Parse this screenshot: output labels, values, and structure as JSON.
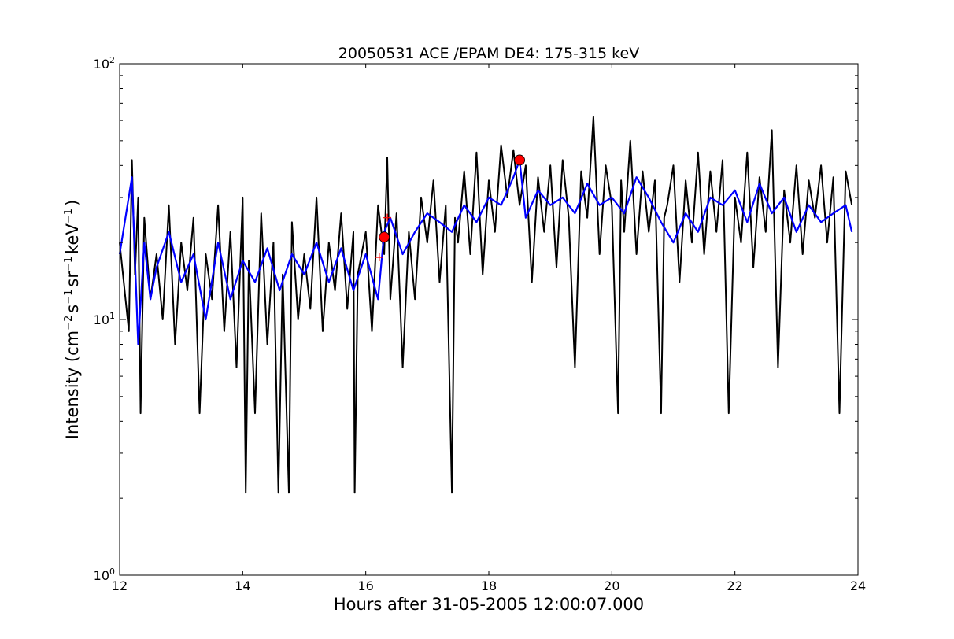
{
  "chart_data": {
    "type": "line",
    "title": "20050531 ACE /EPAM DE4: 175-315 keV",
    "xlabel": "Hours after 31-05-2005 12:00:07.000",
    "ylabel": {
      "base": "Intensity (cm",
      "exp1": "−2",
      "mid1": "s",
      "exp2": "−1",
      "mid2": "sr",
      "exp3": "−1",
      "mid3": "keV",
      "exp4": "−1",
      "end": ")"
    },
    "xlim": [
      12,
      24
    ],
    "ylim": [
      1,
      100
    ],
    "yscale": "log",
    "grid": false,
    "x_ticks": [
      12,
      14,
      16,
      18,
      20,
      22,
      24
    ],
    "x_tick_labels": [
      "12",
      "14",
      "16",
      "18",
      "20",
      "22",
      "24"
    ],
    "y_ticks": [
      1,
      10,
      100
    ],
    "y_tick_labels": [
      {
        "base": "10",
        "exp": "0"
      },
      {
        "base": "10",
        "exp": "1"
      },
      {
        "base": "10",
        "exp": "2"
      }
    ],
    "series": [
      {
        "color": "#000000",
        "style": "raw",
        "x": [
          12.0,
          12.15,
          12.2,
          12.25,
          12.3,
          12.34,
          12.4,
          12.5,
          12.6,
          12.7,
          12.8,
          12.9,
          13.0,
          13.1,
          13.2,
          13.3,
          13.4,
          13.5,
          13.6,
          13.7,
          13.8,
          13.9,
          14.0,
          14.05,
          14.1,
          14.2,
          14.3,
          14.4,
          14.5,
          14.58,
          14.65,
          14.75,
          14.8,
          14.9,
          15.0,
          15.1,
          15.2,
          15.3,
          15.4,
          15.5,
          15.6,
          15.7,
          15.8,
          15.82,
          15.87,
          16.0,
          16.1,
          16.2,
          16.3,
          16.35,
          16.4,
          16.5,
          16.6,
          16.7,
          16.8,
          16.9,
          17.0,
          17.1,
          17.2,
          17.3,
          17.4,
          17.45,
          17.5,
          17.6,
          17.7,
          17.8,
          17.9,
          18.0,
          18.1,
          18.2,
          18.3,
          18.4,
          18.5,
          18.6,
          18.7,
          18.8,
          18.9,
          19.0,
          19.1,
          19.2,
          19.3,
          19.4,
          19.5,
          19.6,
          19.7,
          19.8,
          19.9,
          20.0,
          20.1,
          20.15,
          20.2,
          20.3,
          20.4,
          20.5,
          20.6,
          20.7,
          20.8,
          20.85,
          20.9,
          21.0,
          21.1,
          21.2,
          21.3,
          21.4,
          21.5,
          21.6,
          21.7,
          21.8,
          21.9,
          22.0,
          22.1,
          22.2,
          22.3,
          22.4,
          22.5,
          22.6,
          22.7,
          22.8,
          22.9,
          23.0,
          23.1,
          23.2,
          23.3,
          23.4,
          23.5,
          23.6,
          23.7,
          23.8,
          23.9
        ],
        "y": [
          20,
          9,
          42,
          15,
          30,
          4.3,
          25,
          12,
          18,
          10,
          28,
          8,
          20,
          13,
          25,
          4.3,
          18,
          12,
          28,
          9,
          22,
          6.5,
          30,
          2.1,
          17,
          4.3,
          26,
          8,
          20,
          2.1,
          15,
          2.1,
          24,
          10,
          18,
          11,
          30,
          9,
          20,
          13,
          26,
          11,
          22,
          2.1,
          15,
          22,
          9,
          28,
          18,
          43,
          12,
          26,
          6.5,
          22,
          12,
          30,
          20,
          35,
          14,
          28,
          2.1,
          25,
          20,
          38,
          18,
          45,
          15,
          35,
          22,
          48,
          30,
          46,
          28,
          40,
          14,
          36,
          22,
          40,
          16,
          42,
          25,
          6.5,
          38,
          25,
          62,
          18,
          40,
          28,
          4.3,
          35,
          22,
          50,
          18,
          38,
          22,
          35,
          4.3,
          25,
          28,
          40,
          14,
          35,
          20,
          45,
          18,
          38,
          22,
          42,
          4.3,
          30,
          20,
          45,
          16,
          36,
          22,
          55,
          6.5,
          32,
          20,
          40,
          18,
          35,
          25,
          40,
          20,
          36,
          4.3,
          38,
          28
        ]
      },
      {
        "color": "#0000ff",
        "style": "smoothed",
        "x": [
          12.0,
          12.2,
          12.3,
          12.4,
          12.5,
          12.6,
          12.8,
          13.0,
          13.2,
          13.4,
          13.6,
          13.8,
          14.0,
          14.2,
          14.4,
          14.6,
          14.8,
          15.0,
          15.2,
          15.4,
          15.6,
          15.8,
          16.0,
          16.2,
          16.3,
          16.4,
          16.6,
          16.8,
          17.0,
          17.2,
          17.4,
          17.6,
          17.8,
          18.0,
          18.2,
          18.4,
          18.5,
          18.6,
          18.8,
          19.0,
          19.2,
          19.4,
          19.6,
          19.8,
          20.0,
          20.2,
          20.4,
          20.6,
          20.8,
          21.0,
          21.2,
          21.4,
          21.6,
          21.8,
          22.0,
          22.2,
          22.4,
          22.6,
          22.8,
          23.0,
          23.2,
          23.4,
          23.6,
          23.8,
          23.9
        ],
        "y": [
          18,
          36,
          8,
          20,
          12,
          16,
          22,
          14,
          18,
          10,
          20,
          12,
          17,
          14,
          19,
          13,
          18,
          15,
          20,
          14,
          19,
          13,
          18,
          12,
          22,
          25,
          18,
          22,
          26,
          24,
          22,
          28,
          24,
          30,
          28,
          36,
          42,
          25,
          32,
          28,
          30,
          26,
          34,
          28,
          30,
          26,
          36,
          30,
          24,
          20,
          26,
          22,
          30,
          28,
          32,
          24,
          34,
          26,
          30,
          22,
          28,
          24,
          26,
          28,
          22
        ]
      }
    ],
    "markers": [
      {
        "x": 16.3,
        "y": 21,
        "type": "circle",
        "color": "#ff0000"
      },
      {
        "x": 18.5,
        "y": 42,
        "type": "circle",
        "color": "#ff0000"
      },
      {
        "x": 16.35,
        "y": 25,
        "type": "plus",
        "color": "#ff0000"
      },
      {
        "x": 16.22,
        "y": 17.5,
        "type": "plus",
        "color": "#ff0000"
      }
    ]
  }
}
